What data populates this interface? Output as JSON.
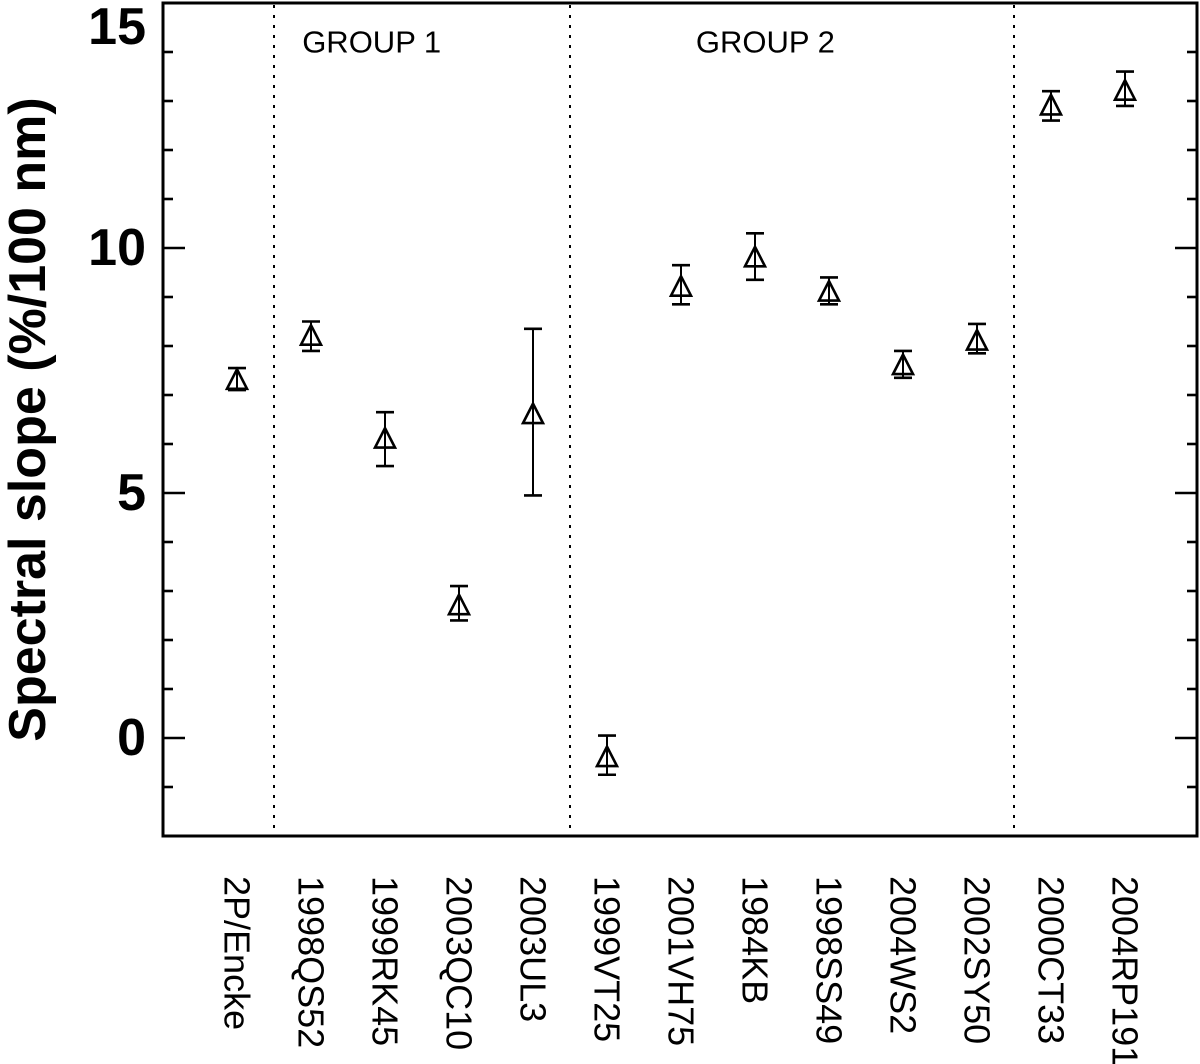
{
  "figure": {
    "background_color": "#ffffff",
    "foreground_color": "#000000",
    "description": "Scatter plot of spectral slope with error bars for comets and asteroid-like objects, separated into groups by dashed lines"
  },
  "chart_data": {
    "type": "scatter",
    "title": "",
    "xlabel": "",
    "ylabel": "Spectral slope (%/100 nm)",
    "ylim": [
      -2,
      15
    ],
    "yticks": [
      0,
      5,
      10,
      15
    ],
    "ytick_labels": [
      "0",
      "5",
      "10",
      "15"
    ],
    "minor_tick_step": 1,
    "grid": false,
    "legend_position": "none",
    "marker": "open-triangle-up",
    "error_bars": "vertical-with-caps",
    "separator_style": "vertical-dashed",
    "separators_after_index": [
      0,
      4,
      10
    ],
    "group_labels": [
      {
        "text": "GROUP 1",
        "x_index": 1.82,
        "y_value": 14.2
      },
      {
        "text": "GROUP 2",
        "x_index": 7.14,
        "y_value": 14.2
      }
    ],
    "categories": [
      "2P/Encke",
      "1998QS52",
      "1999RK45",
      "2003QC10",
      "2003UL3",
      "1999VT25",
      "2001VH75",
      "1984KB",
      "1998SS49",
      "2004WS2",
      "2002SY50",
      "2000CT33",
      "2004RP191"
    ],
    "points": [
      {
        "label": "2P/Encke",
        "group": "",
        "y": 7.3,
        "err_plus": 0.25,
        "err_minus": 0.2
      },
      {
        "label": "1998QS52",
        "group": "GROUP 1",
        "y": 8.2,
        "err_plus": 0.3,
        "err_minus": 0.3
      },
      {
        "label": "1999RK45",
        "group": "GROUP 1",
        "y": 6.1,
        "err_plus": 0.55,
        "err_minus": 0.55
      },
      {
        "label": "2003QC10",
        "group": "GROUP 1",
        "y": 2.7,
        "err_plus": 0.4,
        "err_minus": 0.3
      },
      {
        "label": "2003UL3",
        "group": "GROUP 1",
        "y": 6.6,
        "err_plus": 1.75,
        "err_minus": 1.65
      },
      {
        "label": "1999VT25",
        "group": "GROUP 2",
        "y": -0.4,
        "err_plus": 0.45,
        "err_minus": 0.35
      },
      {
        "label": "2001VH75",
        "group": "GROUP 2",
        "y": 9.2,
        "err_plus": 0.45,
        "err_minus": 0.35
      },
      {
        "label": "1984KB",
        "group": "GROUP 2",
        "y": 9.8,
        "err_plus": 0.5,
        "err_minus": 0.45
      },
      {
        "label": "1998SS49",
        "group": "GROUP 2",
        "y": 9.1,
        "err_plus": 0.3,
        "err_minus": 0.25
      },
      {
        "label": "2004WS2",
        "group": "GROUP 2",
        "y": 7.6,
        "err_plus": 0.3,
        "err_minus": 0.25
      },
      {
        "label": "2002SY50",
        "group": "GROUP 2",
        "y": 8.1,
        "err_plus": 0.35,
        "err_minus": 0.25
      },
      {
        "label": "2000CT33",
        "group": "",
        "y": 12.9,
        "err_plus": 0.3,
        "err_minus": 0.3
      },
      {
        "label": "2004RP191",
        "group": "",
        "y": 13.2,
        "err_plus": 0.4,
        "err_minus": 0.3
      }
    ]
  }
}
